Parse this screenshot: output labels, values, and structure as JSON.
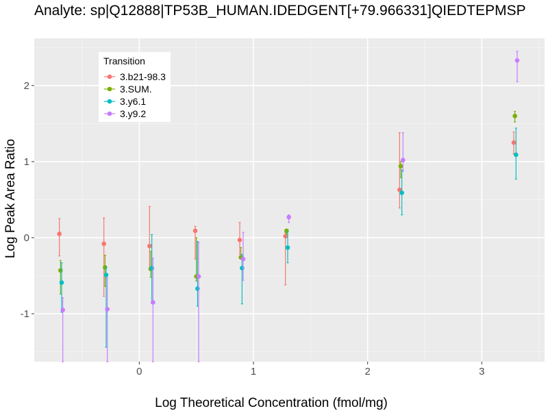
{
  "chart_data": {
    "type": "scatter",
    "title": "Analyte: sp|Q12888|TP53B_HUMAN.IDEDGENT[+79.966331]QIEDTEPMSP",
    "xlabel": "Log Theoretical Concentration (fmol/mg)",
    "ylabel": "Log Peak Area Ratio",
    "xlim": [
      -0.92,
      3.55
    ],
    "ylim": [
      -1.63,
      2.62
    ],
    "x_ticks": [
      0,
      1,
      2,
      3
    ],
    "x_tick_labels": [
      "0",
      "1",
      "2",
      "3"
    ],
    "y_ticks": [
      -1,
      0,
      1,
      2
    ],
    "y_tick_labels": [
      "-1",
      "0",
      "1",
      "2"
    ],
    "grid": true,
    "legend": {
      "title": "Transition",
      "position": "top-left"
    },
    "series": [
      {
        "name": "3.b21-98.3",
        "color": "#F8766D",
        "points": [
          {
            "x": -0.7,
            "y": 0.05,
            "ymin": -0.24,
            "ymax": 0.25
          },
          {
            "x": -0.31,
            "y": -0.08,
            "ymin": -0.77,
            "ymax": 0.26
          },
          {
            "x": 0.09,
            "y": -0.11,
            "ymin": -0.42,
            "ymax": 0.41
          },
          {
            "x": 0.49,
            "y": 0.09,
            "ymin": -0.28,
            "ymax": 0.15
          },
          {
            "x": 0.88,
            "y": -0.03,
            "ymin": -0.26,
            "ymax": 0.2
          },
          {
            "x": 1.28,
            "y": 0.02,
            "ymin": -0.62,
            "ymax": 0.07
          },
          {
            "x": 2.28,
            "y": 0.63,
            "ymin": 0.39,
            "ymax": 1.38
          },
          {
            "x": 3.28,
            "y": 1.25,
            "ymin": 1.1,
            "ymax": 1.39
          }
        ]
      },
      {
        "name": "3.SUM.",
        "color": "#7CAE00",
        "points": [
          {
            "x": -0.69,
            "y": -0.43,
            "ymin": -0.74,
            "ymax": -0.3
          },
          {
            "x": -0.3,
            "y": -0.39,
            "ymin": -0.64,
            "ymax": -0.23
          },
          {
            "x": 0.1,
            "y": -0.41,
            "ymin": -0.52,
            "ymax": -0.18
          },
          {
            "x": 0.5,
            "y": -0.51,
            "ymin": -0.57,
            "ymax": 0.0
          },
          {
            "x": 0.89,
            "y": -0.26,
            "ymin": -0.27,
            "ymax": -0.13
          },
          {
            "x": 1.29,
            "y": 0.09,
            "ymin": 0.05,
            "ymax": 0.1
          },
          {
            "x": 2.29,
            "y": 0.94,
            "ymin": 0.79,
            "ymax": 1.0
          },
          {
            "x": 3.29,
            "y": 1.6,
            "ymin": 1.52,
            "ymax": 1.66
          }
        ]
      },
      {
        "name": "3.y6.1",
        "color": "#00BFC4",
        "points": [
          {
            "x": -0.68,
            "y": -0.59,
            "ymin": -0.98,
            "ymax": -0.33
          },
          {
            "x": -0.29,
            "y": -0.49,
            "ymin": -1.44,
            "ymax": -0.39
          },
          {
            "x": 0.11,
            "y": -0.4,
            "ymin": -0.86,
            "ymax": 0.04
          },
          {
            "x": 0.51,
            "y": -0.67,
            "ymin": -0.9,
            "ymax": -0.05
          },
          {
            "x": 0.9,
            "y": -0.4,
            "ymin": -0.87,
            "ymax": -0.22
          },
          {
            "x": 1.3,
            "y": -0.13,
            "ymin": -0.33,
            "ymax": 0.08
          },
          {
            "x": 2.3,
            "y": 0.59,
            "ymin": 0.3,
            "ymax": 0.89
          },
          {
            "x": 3.3,
            "y": 1.09,
            "ymin": 0.77,
            "ymax": 1.44
          }
        ]
      },
      {
        "name": "3.y9.2",
        "color": "#C77CFF",
        "points": [
          {
            "x": -0.67,
            "y": -0.95,
            "ymin": -1.63,
            "ymax": -0.79
          },
          {
            "x": -0.28,
            "y": -0.94,
            "ymin": -1.63,
            "ymax": -0.53
          },
          {
            "x": 0.12,
            "y": -0.85,
            "ymin": -1.63,
            "ymax": -0.27
          },
          {
            "x": 0.52,
            "y": -0.51,
            "ymin": -1.63,
            "ymax": -0.06
          },
          {
            "x": 0.91,
            "y": -0.28,
            "ymin": -0.56,
            "ymax": 0.07
          },
          {
            "x": 1.31,
            "y": 0.27,
            "ymin": 0.2,
            "ymax": 0.3
          },
          {
            "x": 2.31,
            "y": 1.02,
            "ymin": 0.87,
            "ymax": 1.38
          },
          {
            "x": 3.31,
            "y": 2.33,
            "ymin": 2.05,
            "ymax": 2.45
          }
        ]
      }
    ]
  }
}
